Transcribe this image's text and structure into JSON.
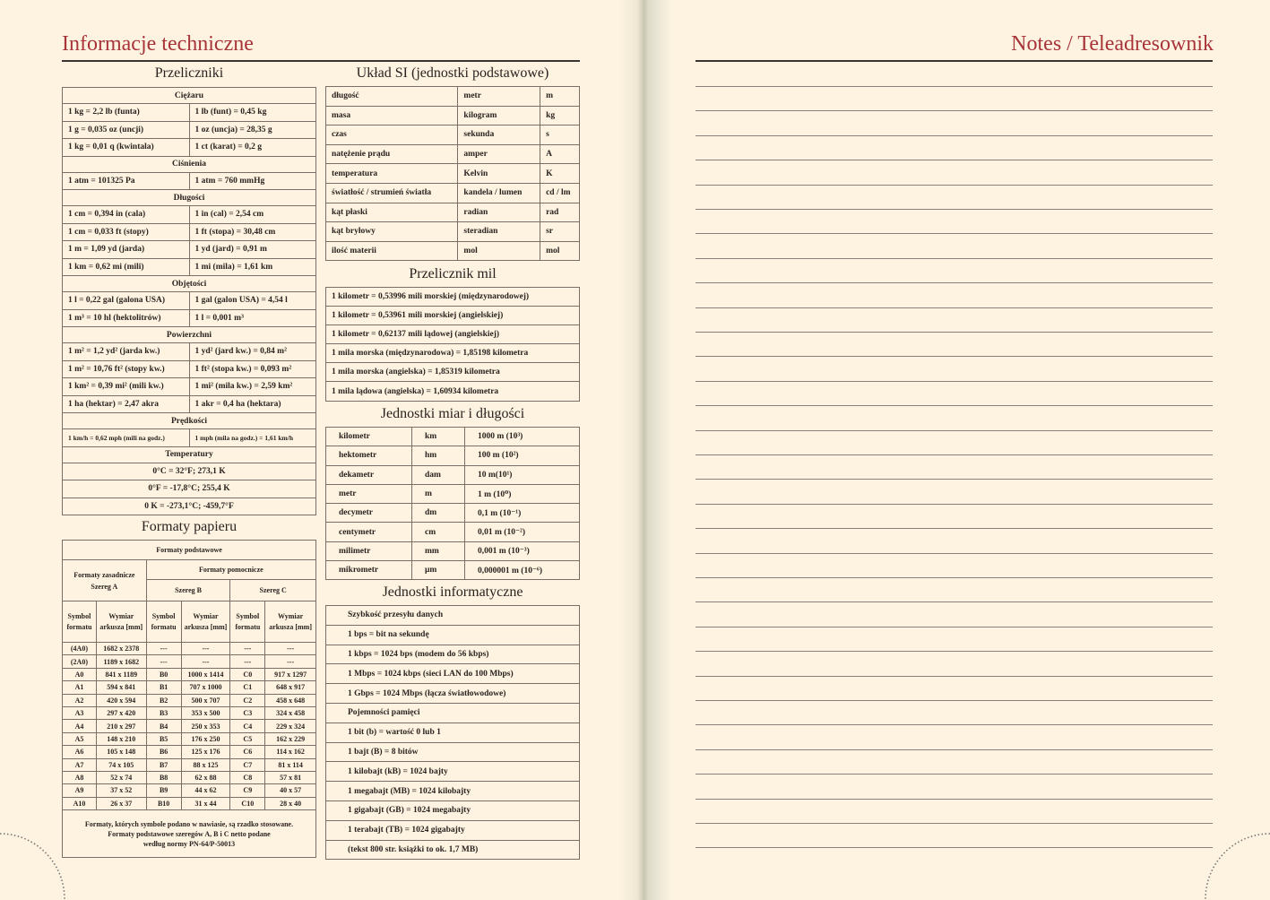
{
  "left_page": {
    "title": "Informacje techniczne"
  },
  "right_page": {
    "title": "Notes / Teleadresownik"
  },
  "przeliczniki": {
    "heading": "Przeliczniki",
    "sections": [
      {
        "title": "Ciężaru",
        "rows": [
          [
            "1 kg = 2,2 lb (funta)",
            "1 lb (funt) = 0,45 kg"
          ],
          [
            "1 g = 0,035 oz (uncji)",
            "1 oz (uncja) = 28,35 g"
          ],
          [
            "1 kg = 0,01 q (kwintala)",
            "1 ct (karat) = 0,2 g"
          ]
        ]
      },
      {
        "title": "Ciśnienia",
        "rows": [
          [
            "1 atm = 101325 Pa",
            "1 atm = 760 mmHg"
          ]
        ]
      },
      {
        "title": "Długości",
        "rows": [
          [
            "1 cm = 0,394 in (cala)",
            "1 in (cal) = 2,54 cm"
          ],
          [
            "1 cm = 0,033 ft (stopy)",
            "1 ft (stopa) = 30,48 cm"
          ],
          [
            "1 m = 1,09 yd (jarda)",
            "1 yd (jard) = 0,91 m"
          ],
          [
            "1 km = 0,62 mi (mili)",
            "1 mi (mila) = 1,61 km"
          ]
        ]
      },
      {
        "title": "Objętości",
        "rows": [
          [
            "1 l = 0,22 gal (galona USA)",
            "1 gal (galon USA) = 4,54 l"
          ],
          [
            "1 m³ = 10 hl (hektolitrów)",
            "1 l = 0,001 m³"
          ]
        ]
      },
      {
        "title": "Powierzchni",
        "rows": [
          [
            "1 m² = 1,2 yd² (jarda kw.)",
            "1 yd² (jard kw.) = 0,84 m²"
          ],
          [
            "1 m² = 10,76 ft² (stopy kw.)",
            "1 ft² (stopa kw.) = 0,093 m²"
          ],
          [
            "1 km² = 0,39 mi² (mili kw.)",
            "1 mi² (mila kw.) = 2,59 km²"
          ],
          [
            "1 ha (hektar) = 2,47 akra",
            "1 akr = 0,4 ha (hektara)"
          ]
        ]
      },
      {
        "title": "Prędkości",
        "rows": [
          [
            "1 km/h = 0,62 mph (mili na godz.)",
            "1 mph (mila na godz.) = 1,61 km/h"
          ]
        ]
      },
      {
        "title": "Temperatury",
        "rows": [
          [
            "0°C = 32°F; 273,1 K"
          ],
          [
            "0°F = -17,8°C; 255,4 K"
          ],
          [
            "0 K  = -273,1°C; -459,7°F"
          ]
        ]
      }
    ]
  },
  "formaty": {
    "heading": "Formaty papieru",
    "podstawowe": "Formaty podstawowe",
    "zasadnicze": "Formaty zasadnicze Szereg A",
    "pomocnicze": "Formaty pomocnicze",
    "szereg_b": "Szereg B",
    "szereg_c": "Szereg C",
    "symbol": "Symbol formatu",
    "wymiar": "Wymiar arkusza [mm]",
    "rows": [
      [
        "(4A0)",
        "1682  x  2378",
        "---",
        "---",
        "---",
        "---"
      ],
      [
        "(2A0)",
        "1189  x  1682",
        "---",
        "---",
        "---",
        "---"
      ],
      [
        "A0",
        "841  x  1189",
        "B0",
        "1000  x  1414",
        "C0",
        "917  x  1297"
      ],
      [
        "A1",
        "594  x  841",
        "B1",
        "707  x  1000",
        "C1",
        "648  x  917"
      ],
      [
        "A2",
        "420  x  594",
        "B2",
        "500  x  707",
        "C2",
        "458  x  648"
      ],
      [
        "A3",
        "297  x  420",
        "B3",
        "353  x  500",
        "C3",
        "324  x  458"
      ],
      [
        "A4",
        "210  x  297",
        "B4",
        "250  x  353",
        "C4",
        "229  x  324"
      ],
      [
        "A5",
        "148  x  210",
        "B5",
        "176  x  250",
        "C5",
        "162  x  229"
      ],
      [
        "A6",
        "105  x  148",
        "B6",
        "125  x  176",
        "C6",
        "114  x  162"
      ],
      [
        "A7",
        "74  x  105",
        "B7",
        "88  x  125",
        "C7",
        "81  x  114"
      ],
      [
        "A8",
        "52  x  74",
        "B8",
        "62  x  88",
        "C8",
        "57  x  81"
      ],
      [
        "A9",
        "37  x  52",
        "B9",
        "44  x  62",
        "C9",
        "40  x  57"
      ],
      [
        "A10",
        "26  x  37",
        "B10",
        "31  x  44",
        "C10",
        "28  x  40"
      ]
    ],
    "note": [
      "Formaty, których symbole podano w nawiasie, są rzadko stosowane.",
      "Formaty podstawowe szeregów A, B i C netto podane",
      "według normy PN-64/P-50013"
    ]
  },
  "si": {
    "heading": "Układ SI (jednostki podstawowe)",
    "rows": [
      [
        "długość",
        "metr",
        "m"
      ],
      [
        "masa",
        "kilogram",
        "kg"
      ],
      [
        "czas",
        "sekunda",
        "s"
      ],
      [
        "natężenie prądu",
        "amper",
        "A"
      ],
      [
        "temperatura",
        "Kelvin",
        "K"
      ],
      [
        "światłość / strumień światła",
        "kandela / lumen",
        "cd / lm"
      ],
      [
        "kąt płaski",
        "radian",
        "rad"
      ],
      [
        "kąt bryłowy",
        "steradian",
        "sr"
      ],
      [
        "ilość materii",
        "mol",
        "mol"
      ]
    ]
  },
  "mile": {
    "heading": "Przelicznik mil",
    "rows": [
      [
        "1 kilometr = 0,53996 mili morskiej (międzynarodowej)"
      ],
      [
        "1 kilometr = 0,53961 mili morskiej (angielskiej)"
      ],
      [
        "1 kilometr = 0,62137 mili lądowej (angielskiej)"
      ],
      [
        "1 mila morska (międzynarodowa) = 1,85198 kilometra"
      ],
      [
        "1 mila morska (angielska) = 1,85319 kilometra"
      ],
      [
        "1 mila lądowa (angielska) = 1,60934 kilometra"
      ]
    ]
  },
  "miary": {
    "heading": "Jednostki miar i długości",
    "rows": [
      [
        "kilometr",
        "km",
        "1000 m (10³)"
      ],
      [
        "hektometr",
        "hm",
        "100 m (10²)"
      ],
      [
        "dekametr",
        "dam",
        "10 m(10¹)"
      ],
      [
        "metr",
        "m",
        "1 m (10⁰)"
      ],
      [
        "decymetr",
        "dm",
        "0,1 m (10⁻¹)"
      ],
      [
        "centymetr",
        "cm",
        "0,01 m (10⁻²)"
      ],
      [
        "milimetr",
        "mm",
        "0,001 m (10⁻³)"
      ],
      [
        "mikrometr",
        "μm",
        "0,000001 m (10⁻⁶)"
      ]
    ]
  },
  "info": {
    "heading": "Jednostki informatyczne",
    "rows": [
      [
        "Szybkość przesyłu danych"
      ],
      [
        "1 bps = bit na sekundę"
      ],
      [
        "1 kbps = 1024 bps (modem do 56 kbps)"
      ],
      [
        "1 Mbps = 1024 kbps (sieci LAN do 100 Mbps)"
      ],
      [
        "1 Gbps = 1024 Mbps (łącza światłowodowe)"
      ],
      [
        "Pojemności pamięci"
      ],
      [
        "1 bit (b) = wartość 0 lub 1"
      ],
      [
        "1 bajt (B) = 8 bitów"
      ],
      [
        "1 kilobajt (kB) = 1024 bajty"
      ],
      [
        "1 megabajt (MB) = 1024 kilobajty"
      ],
      [
        "1 gigabajt (GB) = 1024 megabajty"
      ],
      [
        "1 terabajt (TB) = 1024 gigabajty"
      ],
      [
        "(tekst 800 str. książki to ok. 1,7 MB)"
      ]
    ]
  },
  "colors": {
    "title": "#a8343a",
    "paper": "#fdf3e0"
  }
}
